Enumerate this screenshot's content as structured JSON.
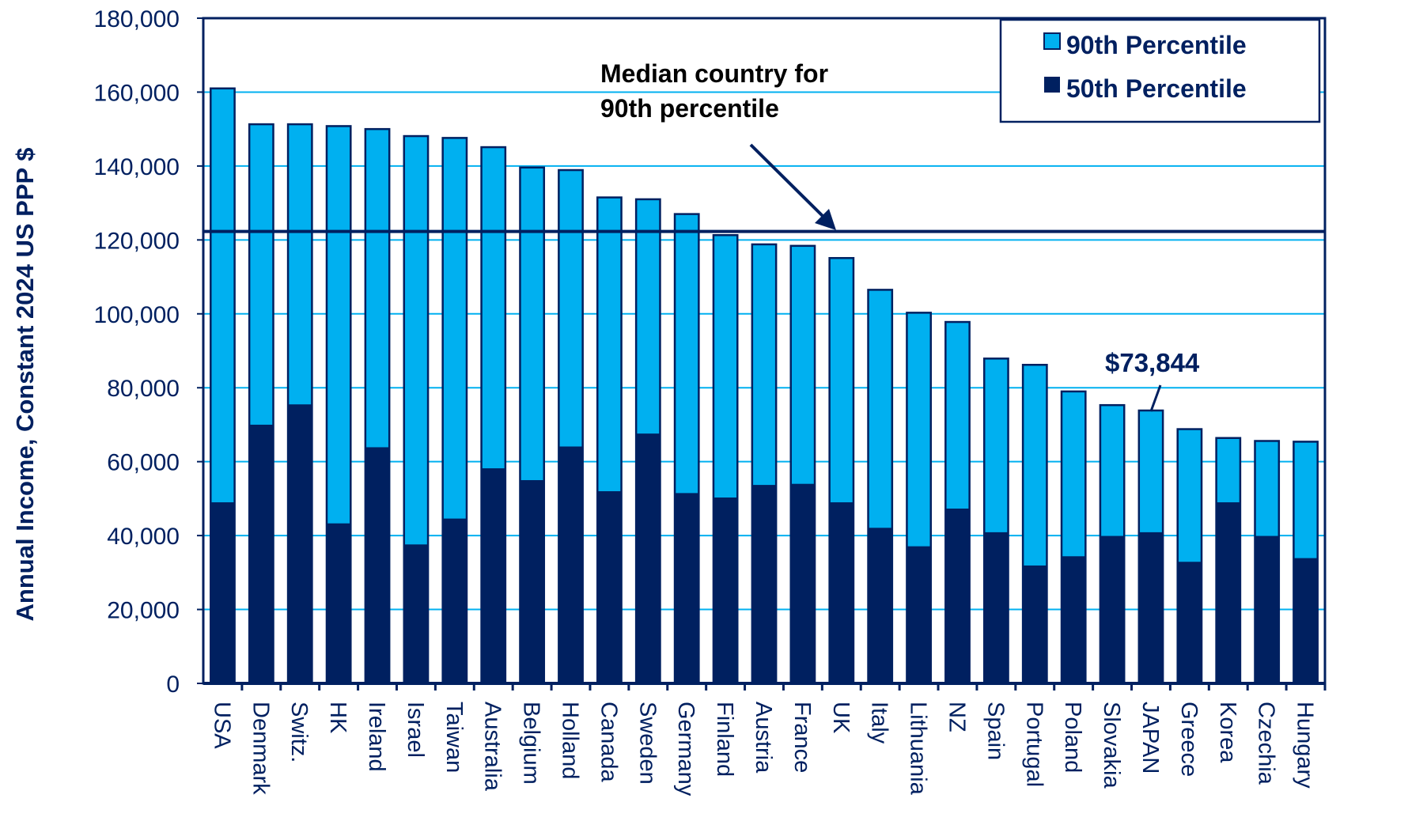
{
  "chart_data": {
    "type": "bar",
    "stacking": "overlay",
    "title": "",
    "xlabel": "",
    "ylabel": "Annual Income, Constant 2024 US PPP $",
    "ylim": [
      0,
      180000
    ],
    "yticks": [
      0,
      20000,
      40000,
      60000,
      80000,
      100000,
      120000,
      140000,
      160000,
      180000
    ],
    "ytick_labels": [
      "0",
      "20,000",
      "40,000",
      "60,000",
      "80,000",
      "100,000",
      "120,000",
      "140,000",
      "160,000",
      "180,000"
    ],
    "grid": true,
    "legend_position": "top-right",
    "categories": [
      "USA",
      "Denmark",
      "Switz.",
      "HK",
      "Ireland",
      "Israel",
      "Taiwan",
      "Australia",
      "Belgium",
      "Holland",
      "Canada",
      "Sweden",
      "Germany",
      "Finland",
      "Austria",
      "France",
      "UK",
      "Italy",
      "Lithuania",
      "NZ",
      "Spain",
      "Portugal",
      "Poland",
      "Slovakia",
      "JAPAN",
      "Greece",
      "Korea",
      "Czechia",
      "Hungary"
    ],
    "series": [
      {
        "name": "90th Percentile",
        "color": "#00B0F0",
        "values": [
          161000,
          151300,
          151300,
          150800,
          150000,
          148100,
          147600,
          145100,
          139600,
          138900,
          131500,
          131000,
          127000,
          121300,
          118800,
          118400,
          115100,
          106500,
          100300,
          97800,
          87900,
          86200,
          79000,
          75300,
          73844,
          68800,
          66400,
          65600,
          65400
        ]
      },
      {
        "name": "50th Percentile",
        "color": "#002060",
        "values": [
          49000,
          70000,
          75500,
          43300,
          63900,
          37600,
          44600,
          58200,
          55000,
          64100,
          52000,
          67600,
          51500,
          50300,
          53700,
          54000,
          49000,
          42100,
          37100,
          47300,
          40900,
          31900,
          34400,
          39900,
          40900,
          32900,
          49000,
          39900,
          33900
        ]
      }
    ],
    "reference_line": {
      "value": 122300,
      "label_line1": "Median country for",
      "label_line2": "90th percentile"
    },
    "callout": {
      "category": "JAPAN",
      "value": 73844,
      "text": "$73,844"
    }
  }
}
